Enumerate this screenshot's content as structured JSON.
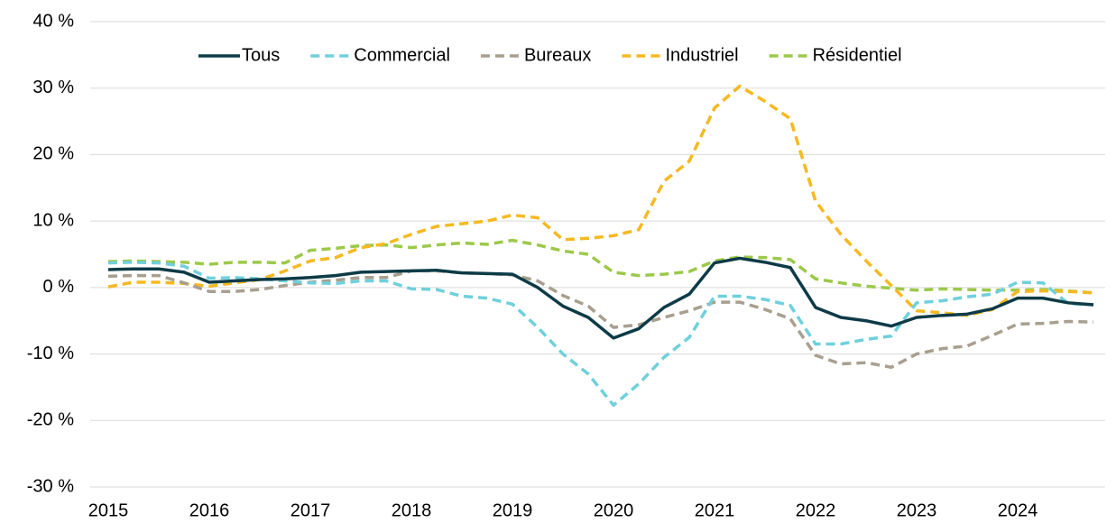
{
  "chart_data": {
    "type": "line",
    "categories": [
      "2015",
      null,
      null,
      null,
      "2016",
      null,
      null,
      null,
      "2017",
      null,
      null,
      null,
      "2018",
      null,
      null,
      null,
      "2019",
      null,
      null,
      null,
      "2020",
      null,
      null,
      null,
      "2021",
      null,
      null,
      null,
      "2022",
      null,
      null,
      null,
      "2023",
      null,
      null,
      null,
      "2024",
      null,
      null,
      null
    ],
    "ylim": [
      -30,
      40
    ],
    "yticks": [
      {
        "value": -30,
        "label": "-30 %"
      },
      {
        "value": -20,
        "label": "-20 %"
      },
      {
        "value": -10,
        "label": "-10 %"
      },
      {
        "value": 0,
        "label": "0 %"
      },
      {
        "value": 10,
        "label": "10 %"
      },
      {
        "value": 20,
        "label": "20 %"
      },
      {
        "value": 30,
        "label": "30 %"
      },
      {
        "value": 40,
        "label": "40 %"
      }
    ],
    "grid": true,
    "legend": "top",
    "series": [
      {
        "name": "Tous",
        "color": "#0d3b47",
        "dashed": false,
        "values": [
          2.7,
          2.8,
          2.8,
          2.3,
          0.8,
          1.0,
          1.2,
          1.3,
          1.5,
          1.8,
          2.3,
          2.4,
          2.5,
          2.6,
          2.2,
          2.1,
          2.0,
          0.0,
          -2.8,
          -4.5,
          -7.6,
          -6.2,
          -3.0,
          -1.0,
          3.7,
          4.4,
          3.8,
          3.0,
          -3.0,
          -4.5,
          -5.0,
          -5.8,
          -4.5,
          -4.2,
          -4.0,
          -3.2,
          -1.6,
          -1.6,
          -2.3,
          -2.6
        ]
      },
      {
        "name": "Commercial",
        "color": "#6fd0dc",
        "dashed": true,
        "values": [
          3.7,
          3.8,
          3.7,
          3.2,
          1.4,
          1.5,
          1.3,
          1.0,
          0.7,
          0.6,
          1.0,
          1.0,
          -0.2,
          -0.3,
          -1.3,
          -1.6,
          -2.5,
          -6.0,
          -10.0,
          -13.0,
          -17.7,
          -14.5,
          -10.5,
          -7.5,
          -1.3,
          -1.3,
          -1.8,
          -2.7,
          -8.5,
          -8.5,
          -7.8,
          -7.3,
          -2.3,
          -2.0,
          -1.4,
          -1.0,
          0.8,
          0.7,
          -2.4,
          -2.6
        ]
      },
      {
        "name": "Bureaux",
        "color": "#a89f8f",
        "dashed": true,
        "values": [
          1.7,
          1.8,
          1.8,
          0.7,
          -0.6,
          -0.6,
          -0.3,
          0.3,
          0.8,
          1.1,
          1.5,
          1.5,
          2.5,
          2.5,
          2.2,
          2.1,
          1.9,
          1.0,
          -1.2,
          -2.8,
          -6.0,
          -5.6,
          -4.5,
          -3.5,
          -2.2,
          -2.2,
          -3.3,
          -4.7,
          -10.2,
          -11.5,
          -11.3,
          -12.0,
          -10.0,
          -9.2,
          -8.8,
          -7.2,
          -5.5,
          -5.4,
          -5.1,
          -5.2
        ]
      },
      {
        "name": "Industriel",
        "color": "#f5b921",
        "dashed": true,
        "values": [
          0.1,
          0.8,
          0.8,
          0.6,
          0.2,
          0.7,
          1.2,
          2.5,
          4.0,
          4.5,
          6.0,
          6.6,
          8.0,
          9.2,
          9.6,
          10.0,
          10.9,
          10.5,
          7.2,
          7.4,
          7.8,
          8.7,
          16.0,
          19.0,
          27.0,
          30.3,
          28.0,
          25.4,
          13.0,
          8.0,
          4.0,
          0.3,
          -3.5,
          -3.8,
          -4.2,
          -3.3,
          -0.6,
          -0.5,
          -0.6,
          -0.8
        ]
      },
      {
        "name": "Résidentiel",
        "color": "#9cc94a",
        "dashed": true,
        "values": [
          3.9,
          4.0,
          3.9,
          3.8,
          3.5,
          3.8,
          3.8,
          3.7,
          5.6,
          5.9,
          6.3,
          6.4,
          6.0,
          6.4,
          6.7,
          6.5,
          7.1,
          6.4,
          5.5,
          5.0,
          2.3,
          1.8,
          2.0,
          2.4,
          4.0,
          4.6,
          4.5,
          4.2,
          1.3,
          0.7,
          0.2,
          -0.1,
          -0.4,
          -0.2,
          -0.3,
          -0.4,
          -0.4,
          -0.3,
          -0.5,
          -0.8
        ]
      }
    ]
  }
}
